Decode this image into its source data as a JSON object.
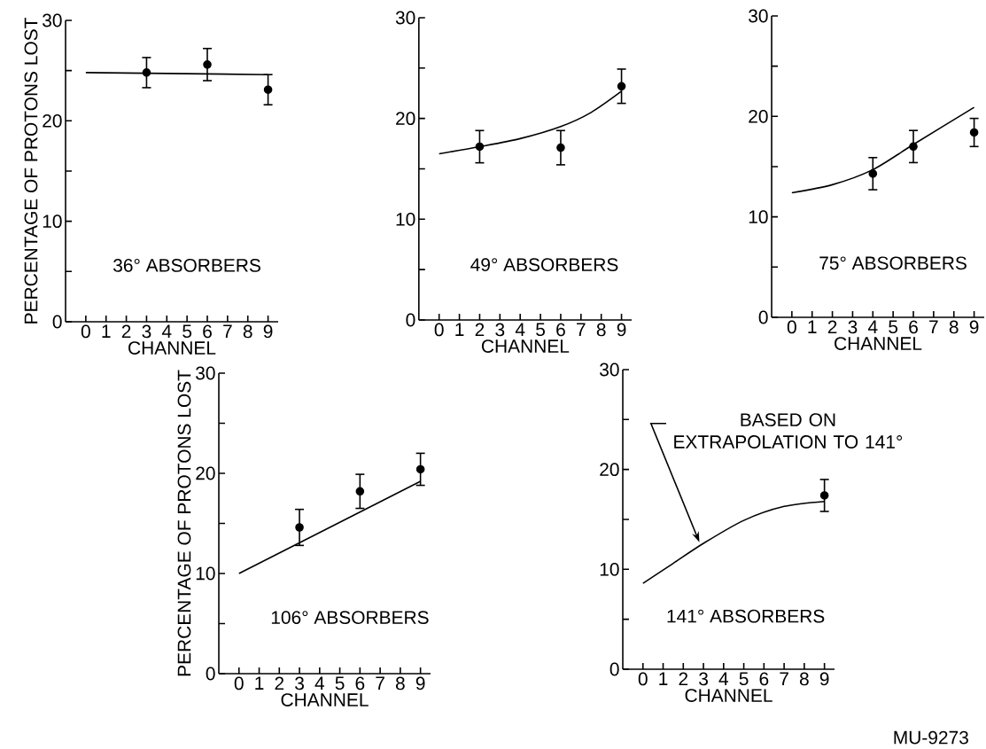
{
  "chart_data": [
    {
      "type": "scatter",
      "xlabel": "CHANNEL",
      "ylabel": "PERCENTAGE OF PROTONS LOST",
      "xlim": [
        -1,
        9.5
      ],
      "ylim": [
        0,
        30
      ],
      "xticks": [
        0,
        1,
        2,
        3,
        4,
        5,
        6,
        7,
        8,
        9
      ],
      "yticks": [
        0,
        {
          "value": 5,
          "label": null
        },
        10,
        {
          "value": 15,
          "label": null
        },
        20,
        {
          "value": 25,
          "label": null
        },
        30
      ],
      "series": [
        {
          "marker": "circle",
          "color": "#000000",
          "x": [
            3,
            6,
            9
          ],
          "values": [
            24.8,
            25.6,
            23.1
          ],
          "errors": [
            1.5,
            1.6,
            1.5
          ]
        },
        {
          "type": "line",
          "marker": "none",
          "color": "#000000",
          "x": [
            0,
            9
          ],
          "values": [
            24.8,
            24.6
          ]
        }
      ],
      "annotations": [
        "36° ABSORBERS"
      ]
    },
    {
      "type": "scatter",
      "xlabel": "CHANNEL",
      "xlim": [
        -1,
        9.5
      ],
      "ylim": [
        0,
        30
      ],
      "xticks": [
        0,
        1,
        2,
        3,
        4,
        5,
        6,
        7,
        8,
        9
      ],
      "yticks": [
        0,
        {
          "value": 5,
          "label": null
        },
        10,
        {
          "value": 15,
          "label": null
        },
        20,
        {
          "value": 25,
          "label": null
        },
        30
      ],
      "series": [
        {
          "marker": "circle",
          "color": "#000000",
          "x": [
            2,
            6,
            9
          ],
          "values": [
            17.2,
            17.1,
            23.2
          ],
          "errors": [
            1.6,
            1.7,
            1.7
          ]
        },
        {
          "type": "line",
          "marker": "none",
          "color": "#000000",
          "x": [
            0,
            2,
            4,
            6,
            7.5,
            9
          ],
          "values": [
            16.5,
            17.2,
            18.0,
            19.2,
            20.6,
            22.7
          ]
        }
      ],
      "annotations": [
        "49° ABSORBERS"
      ]
    },
    {
      "type": "scatter",
      "xlabel": "CHANNEL",
      "xlim": [
        -1,
        9.5
      ],
      "ylim": [
        0,
        30
      ],
      "xticks": [
        0,
        1,
        2,
        3,
        4,
        5,
        6,
        7,
        8,
        9
      ],
      "yticks": [
        0,
        {
          "value": 5,
          "label": null
        },
        10,
        {
          "value": 15,
          "label": null
        },
        20,
        {
          "value": 25,
          "label": null
        },
        30
      ],
      "series": [
        {
          "marker": "circle",
          "color": "#000000",
          "x": [
            4,
            6,
            9
          ],
          "values": [
            14.3,
            17.0,
            18.4
          ],
          "errors": [
            1.6,
            1.6,
            1.4
          ]
        },
        {
          "type": "line",
          "marker": "none",
          "color": "#000000",
          "x": [
            0,
            2,
            4,
            6,
            9
          ],
          "values": [
            12.4,
            13.2,
            14.7,
            17.2,
            20.9
          ]
        }
      ],
      "annotations": [
        "75° ABSORBERS"
      ]
    },
    {
      "type": "scatter",
      "xlabel": "CHANNEL",
      "ylabel": "PERCENTAGE OF PROTONS LOST",
      "xlim": [
        -1,
        9.5
      ],
      "ylim": [
        0,
        30
      ],
      "xticks": [
        0,
        1,
        2,
        3,
        4,
        5,
        6,
        7,
        8,
        9
      ],
      "yticks": [
        0,
        {
          "value": 5,
          "label": null
        },
        10,
        {
          "value": 15,
          "label": null
        },
        20,
        {
          "value": 25,
          "label": null
        },
        30
      ],
      "series": [
        {
          "marker": "circle",
          "color": "#000000",
          "x": [
            3,
            6,
            9
          ],
          "values": [
            14.6,
            18.2,
            20.4
          ],
          "errors": [
            1.8,
            1.7,
            1.6
          ]
        },
        {
          "type": "line",
          "marker": "none",
          "color": "#000000",
          "x": [
            0,
            9
          ],
          "values": [
            10.0,
            19.2
          ]
        }
      ],
      "annotations": [
        "106° ABSORBERS"
      ]
    },
    {
      "type": "scatter",
      "xlabel": "CHANNEL",
      "xlim": [
        -1,
        9.5
      ],
      "ylim": [
        0,
        30
      ],
      "xticks": [
        0,
        1,
        2,
        3,
        4,
        5,
        6,
        7,
        8,
        9
      ],
      "yticks": [
        0,
        {
          "value": 5,
          "label": null
        },
        10,
        {
          "value": 15,
          "label": null
        },
        20,
        {
          "value": 25,
          "label": null
        },
        30
      ],
      "series": [
        {
          "marker": "circle",
          "color": "#000000",
          "x": [
            9
          ],
          "values": [
            17.4
          ],
          "errors": [
            1.6
          ]
        },
        {
          "type": "line",
          "marker": "none",
          "color": "#000000",
          "x": [
            0,
            1.5,
            3,
            5,
            7,
            9
          ],
          "values": [
            8.6,
            10.6,
            12.6,
            14.9,
            16.3,
            16.8
          ]
        }
      ],
      "annotations": [
        "141° ABSORBERS",
        {
          "text": "BASED ON EXTRAPOLATION TO 141°",
          "x": 2.8,
          "y": 12.7
        },
        "MU-9273"
      ]
    }
  ]
}
